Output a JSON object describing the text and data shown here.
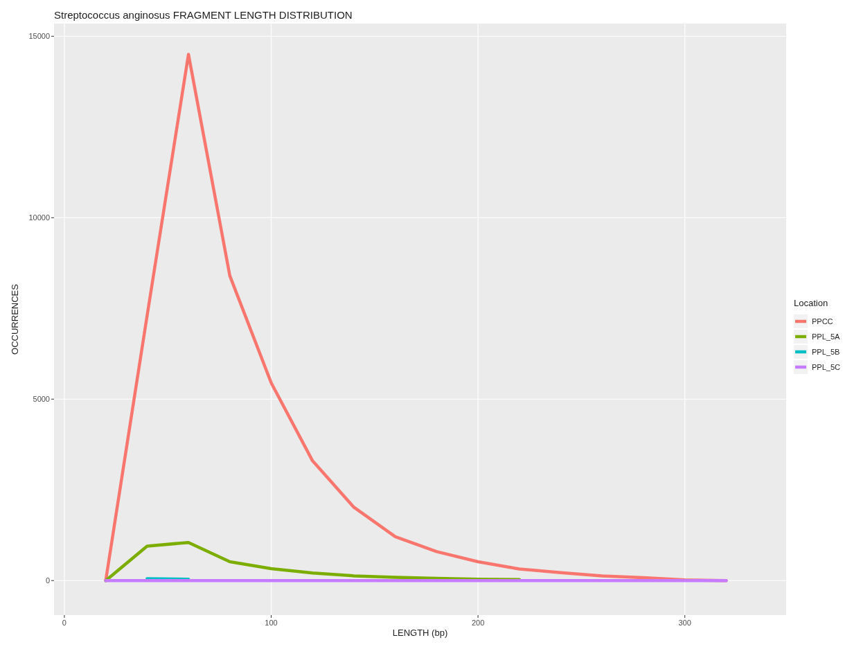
{
  "chart_data": {
    "type": "line",
    "title": "Streptococcus anginosus FRAGMENT LENGTH DISTRIBUTION",
    "xlabel": "LENGTH (bp)",
    "ylabel": "OCCURRENCES",
    "legend_title": "Location",
    "x": [
      20,
      40,
      60,
      80,
      100,
      120,
      140,
      160,
      180,
      200,
      220,
      240,
      260,
      280,
      300,
      320
    ],
    "series": [
      {
        "name": "PPCC",
        "color": "#f8766d",
        "values": [
          0,
          7300,
          14500,
          8400,
          5450,
          3300,
          2020,
          1210,
          800,
          520,
          320,
          220,
          130,
          80,
          20,
          0
        ]
      },
      {
        "name": "PPL_5A",
        "color": "#7cae00",
        "values": [
          0,
          950,
          1050,
          520,
          330,
          210,
          130,
          90,
          60,
          40,
          30,
          null,
          null,
          null,
          null,
          null
        ]
      },
      {
        "name": "PPL_5B",
        "color": "#00bfc4",
        "values": [
          null,
          50,
          40,
          null,
          null,
          null,
          null,
          null,
          null,
          null,
          null,
          null,
          null,
          null,
          null,
          null
        ]
      },
      {
        "name": "PPL_5C",
        "color": "#c77cff",
        "values": [
          0,
          0,
          0,
          0,
          0,
          0,
          0,
          0,
          0,
          0,
          0,
          0,
          0,
          0,
          0,
          0
        ]
      }
    ],
    "xlim": [
      -5,
      349
    ],
    "ylim": [
      -950,
      15350
    ],
    "xticks": [
      0,
      100,
      200,
      300
    ],
    "yticks": [
      0,
      5000,
      10000,
      15000
    ],
    "grid": true,
    "legend": "right",
    "line_style": "solid"
  }
}
